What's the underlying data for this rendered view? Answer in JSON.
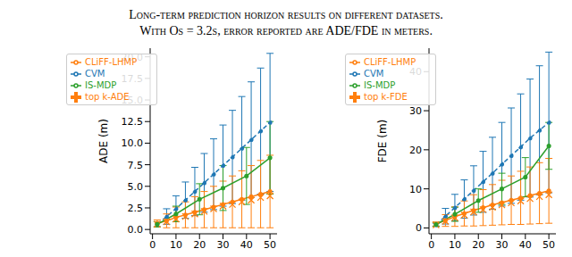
{
  "title": [
    "Long-term prediction horizon results on different datasets.",
    "With Os = 3.2s, error reported are ADE/FDE in meters."
  ],
  "chart_data": [
    {
      "type": "line",
      "y_label": "ADE (m)",
      "xlim": [
        -1,
        53
      ],
      "xticks": [
        0,
        10,
        20,
        30,
        40,
        50
      ],
      "ylim": [
        -0.5,
        21
      ],
      "yticks": [
        {
          "value": 0,
          "label": "0.0"
        },
        {
          "value": 2.5,
          "label": "2.5"
        },
        {
          "value": 5,
          "label": "5.0"
        },
        {
          "value": 7.5,
          "label": "7.5"
        },
        {
          "value": 10,
          "label": "10.0"
        },
        {
          "value": 12.5,
          "label": "12.5"
        },
        {
          "value": 15,
          "label": "15.0"
        },
        {
          "value": 17.5,
          "label": "17.5"
        },
        {
          "value": 20,
          "label": "20.0"
        }
      ],
      "grid": false,
      "legend": "upper left",
      "series": [
        {
          "name": "CVM",
          "color": "#1f77b4",
          "line_style": "dashed",
          "marker": "o",
          "x": [
            2,
            6,
            10,
            14,
            18,
            22,
            26,
            30,
            34,
            38,
            42,
            46,
            50
          ],
          "values": [
            0.6,
            1.5,
            2.4,
            3.4,
            4.4,
            5.4,
            6.4,
            7.4,
            8.4,
            9.4,
            10.4,
            11.4,
            12.4
          ],
          "error": [
            0.3,
            0.9,
            1.5,
            2.1,
            2.8,
            3.4,
            4.1,
            4.7,
            5.4,
            6.0,
            6.7,
            7.3,
            8.0
          ]
        },
        {
          "name": "CLiFF-LHMP",
          "color": "#ff7f0e",
          "line_style": "solid",
          "marker": "o",
          "x": [
            2,
            6,
            10,
            14,
            18,
            22,
            26,
            30,
            34,
            38,
            42,
            46,
            50
          ],
          "values": [
            0.7,
            1.0,
            1.4,
            1.7,
            2.0,
            2.3,
            2.6,
            2.9,
            3.2,
            3.5,
            3.8,
            4.1,
            4.4
          ],
          "error": [
            0.4,
            0.8,
            1.2,
            1.5,
            1.8,
            2.1,
            2.4,
            2.7,
            3.0,
            3.3,
            3.6,
            3.9,
            4.2
          ]
        },
        {
          "name": "IS-MDP",
          "color": "#2ca02c",
          "line_style": "solid",
          "marker": "o",
          "x": [
            2,
            10,
            20,
            30,
            40,
            50
          ],
          "values": [
            0.6,
            1.8,
            3.5,
            4.8,
            6.2,
            8.3
          ],
          "error": [
            0.3,
            0.9,
            1.8,
            2.6,
            3.3,
            4.2
          ]
        },
        {
          "name": "top k-ADE",
          "color": "#ff7f0e",
          "type": "scatter",
          "marker": "x",
          "x": [
            2,
            6,
            10,
            14,
            18,
            22,
            26,
            30,
            34,
            38,
            42,
            46,
            50
          ],
          "values": [
            0.6,
            0.9,
            1.2,
            1.5,
            1.8,
            2.1,
            2.4,
            2.7,
            2.9,
            3.2,
            3.4,
            3.7,
            3.9
          ]
        }
      ]
    },
    {
      "type": "line",
      "y_label": "FDE (m)",
      "xlim": [
        -1,
        53
      ],
      "xticks": [
        0,
        10,
        20,
        30,
        40,
        50
      ],
      "ylim": [
        -1.5,
        46
      ],
      "yticks": [
        0,
        10,
        20,
        30,
        40
      ],
      "grid": false,
      "legend": "upper left",
      "series": [
        {
          "name": "CVM",
          "color": "#1f77b4",
          "line_style": "dashed",
          "marker": "o",
          "x": [
            2,
            6,
            10,
            14,
            18,
            22,
            26,
            30,
            34,
            38,
            42,
            46,
            50
          ],
          "values": [
            0.8,
            3.0,
            5.2,
            7.4,
            9.6,
            11.8,
            14.0,
            16.3,
            18.5,
            20.7,
            23.0,
            25.0,
            27.0
          ],
          "error": [
            0.4,
            2.0,
            3.4,
            4.9,
            6.3,
            7.8,
            9.2,
            10.7,
            12.2,
            13.6,
            15.1,
            16.5,
            18.0
          ]
        },
        {
          "name": "CLiFF-LHMP",
          "color": "#ff7f0e",
          "line_style": "solid",
          "marker": "o",
          "x": [
            2,
            6,
            10,
            14,
            18,
            22,
            26,
            30,
            34,
            38,
            42,
            46,
            50
          ],
          "values": [
            1.0,
            1.9,
            2.9,
            3.7,
            4.5,
            5.2,
            5.9,
            6.5,
            7.1,
            7.7,
            8.3,
            8.9,
            9.5
          ],
          "error": [
            0.5,
            1.5,
            2.5,
            3.2,
            4.0,
            4.6,
            5.2,
            5.7,
            6.2,
            6.8,
            7.3,
            7.8,
            8.3
          ]
        },
        {
          "name": "IS-MDP",
          "color": "#2ca02c",
          "line_style": "solid",
          "marker": "o",
          "x": [
            2,
            10,
            20,
            30,
            40,
            50
          ],
          "values": [
            0.9,
            3.5,
            7.0,
            10.0,
            13.0,
            21.0
          ],
          "error": [
            0.5,
            1.8,
            3.0,
            4.0,
            5.0,
            6.0
          ]
        },
        {
          "name": "top k-FDE",
          "color": "#ff7f0e",
          "type": "scatter",
          "marker": "x",
          "x": [
            2,
            6,
            10,
            14,
            18,
            22,
            26,
            30,
            34,
            38,
            42,
            46,
            50
          ],
          "values": [
            0.8,
            1.7,
            2.6,
            3.3,
            4.1,
            4.7,
            5.3,
            5.9,
            6.4,
            6.9,
            7.5,
            8.0,
            8.5
          ]
        }
      ]
    }
  ]
}
